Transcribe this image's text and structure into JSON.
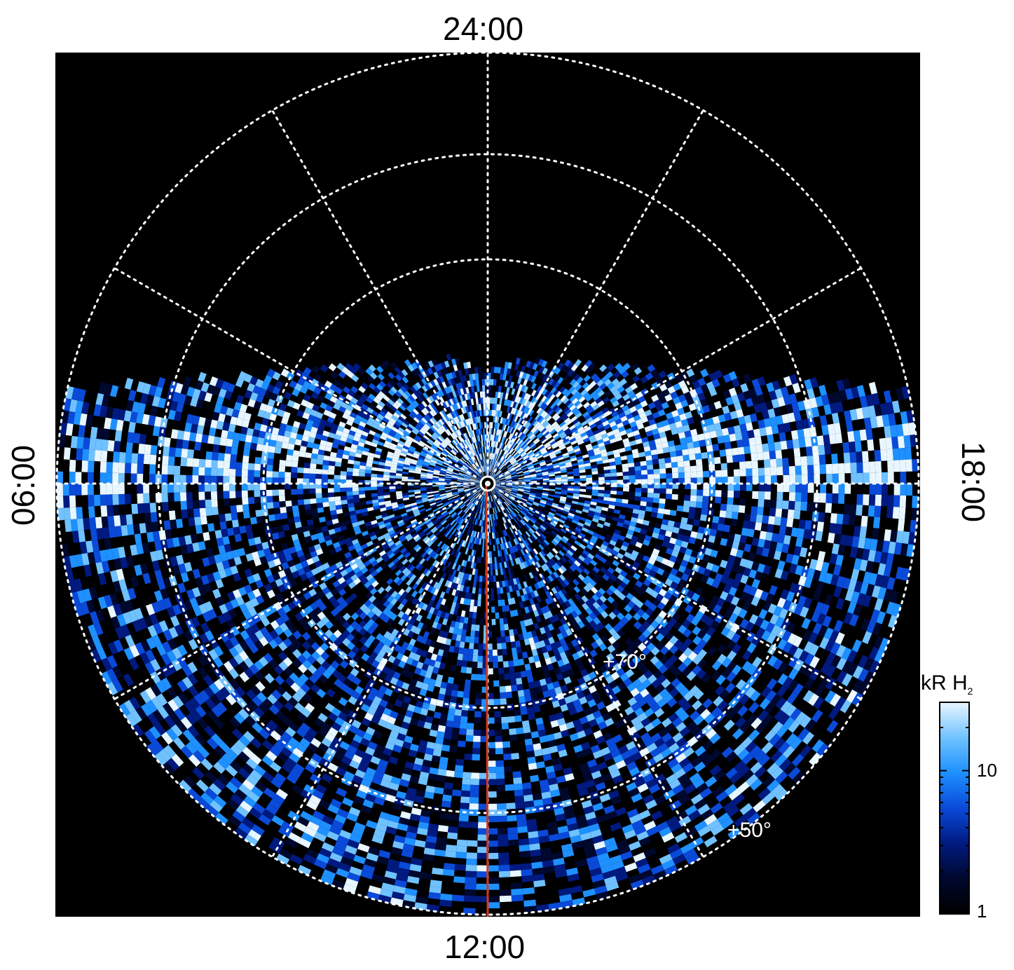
{
  "local_time_labels": {
    "top": "24:00",
    "bottom": "12:00",
    "left": "06:00",
    "right": "18:00"
  },
  "latitude_labels": {
    "lat70": "+70°",
    "lat50": "+50°"
  },
  "colorbar": {
    "unit_main": "kR H",
    "unit_sub": "2",
    "scale": "log",
    "range": [
      1,
      30
    ],
    "tick_labels": {
      "t10": "10",
      "t1": "1"
    },
    "colors": [
      "#000000",
      "#00082e",
      "#001a80",
      "#0a4ad8",
      "#1e90ff",
      "#70c2ff",
      "#e8f6ff"
    ]
  },
  "colors": {
    "background": "#000000",
    "grid": "#ffffff",
    "meridian_line": "#d2381a"
  },
  "projection": "polar",
  "map_layers": [
    {
      "name": "auroral emission",
      "type": "raster",
      "color_scale": "kR H2"
    },
    {
      "name": "latitude circles",
      "type": "grid",
      "style": "dotted",
      "latitudes_labeled": [
        "+70°",
        "+50°"
      ]
    },
    {
      "name": "local time meridians",
      "type": "grid",
      "style": "dotted",
      "spacing_hours": 2
    },
    {
      "name": "noon meridian",
      "type": "line",
      "color": "#d2381a"
    }
  ]
}
